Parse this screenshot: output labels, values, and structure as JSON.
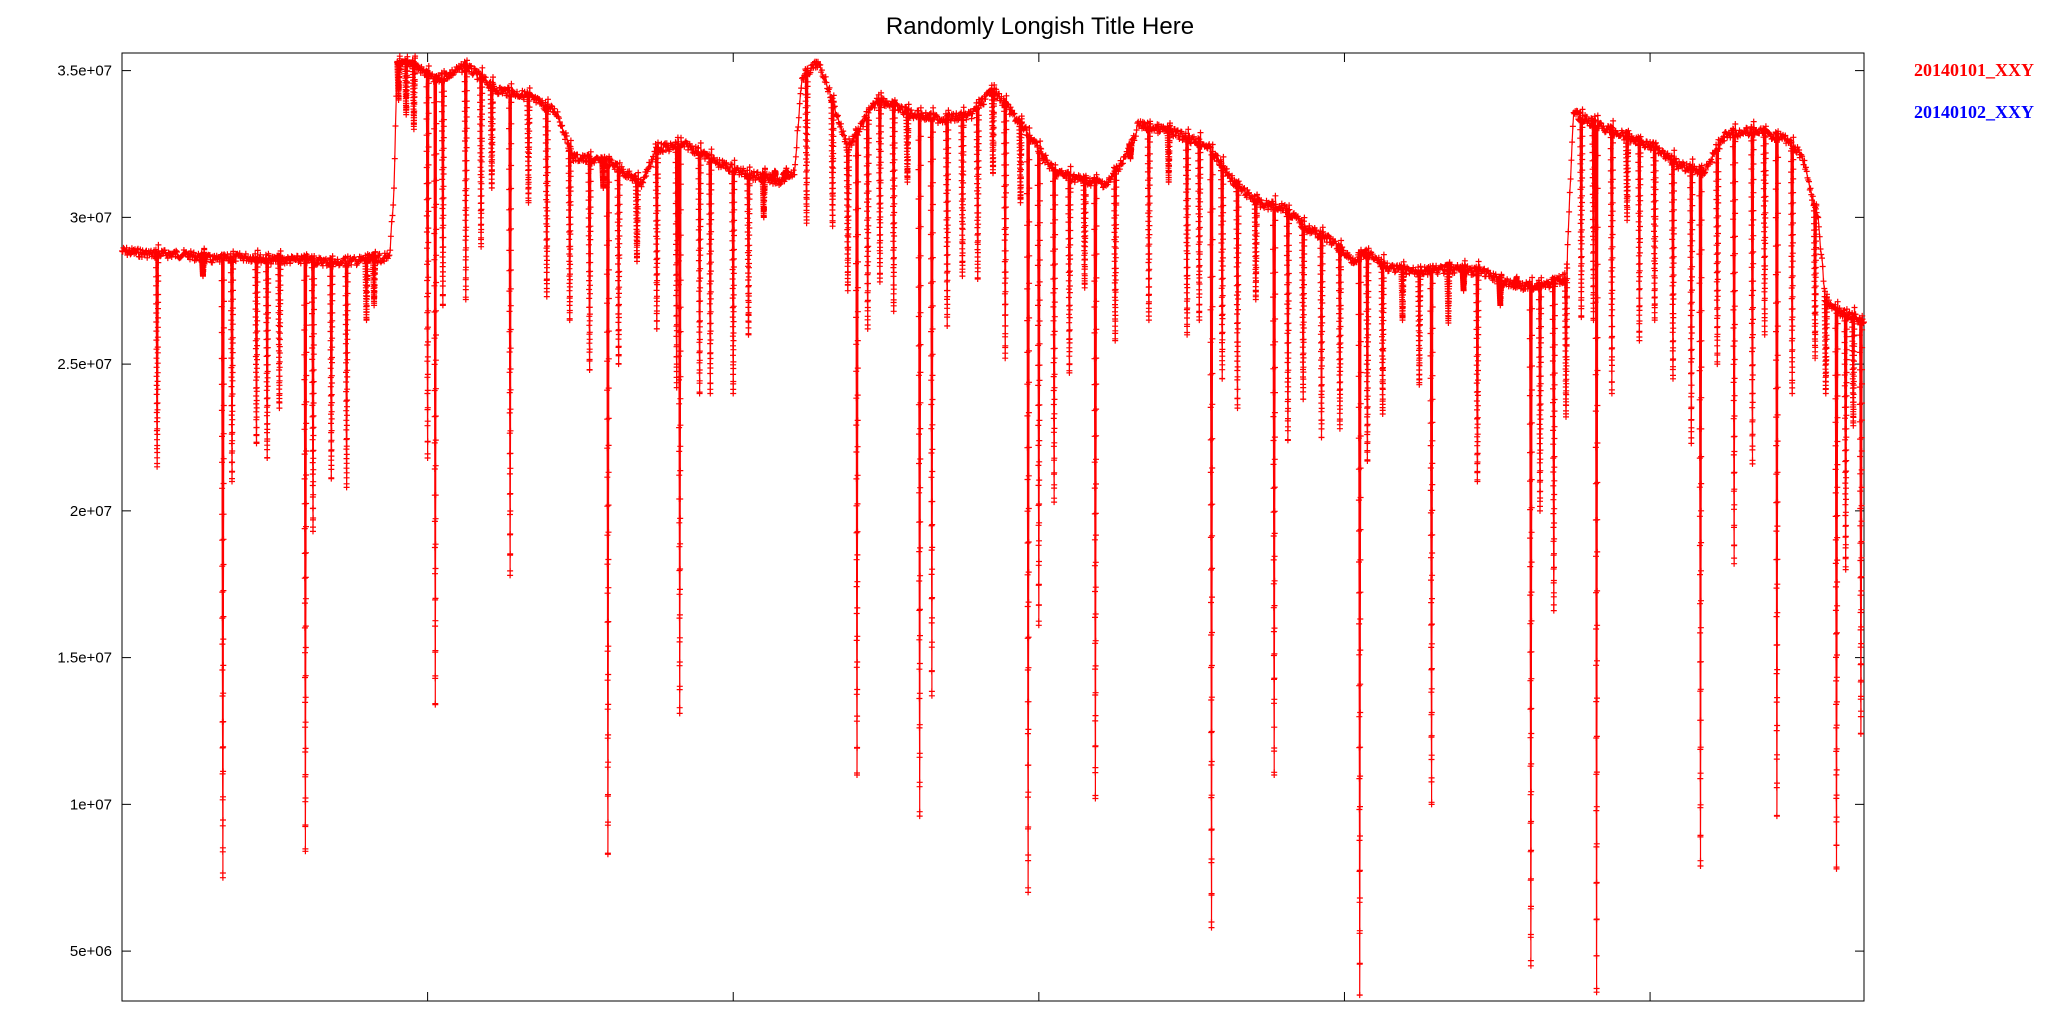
{
  "chart_data": {
    "type": "line",
    "title": "Randomly Longish Title Here",
    "xlabel": "",
    "ylabel": "",
    "ylim": [
      3300000,
      35600000
    ],
    "xlim": [
      0,
      1140
    ],
    "y_ticks": [
      {
        "value": 5000000,
        "label": "5e+06"
      },
      {
        "value": 10000000,
        "label": "1e+07"
      },
      {
        "value": 15000000,
        "label": "1.5e+07"
      },
      {
        "value": 20000000,
        "label": "2e+07"
      },
      {
        "value": 25000000,
        "label": "2.5e+07"
      },
      {
        "value": 30000000,
        "label": "3e+07"
      },
      {
        "value": 35000000,
        "label": "3.5e+07"
      }
    ],
    "x_ticks": [
      200,
      400,
      600,
      800,
      1000
    ],
    "grid": false,
    "legend_position": "outside-right",
    "series": [
      {
        "name": "20140101_XXY",
        "color": "#ff0000",
        "marker": "+",
        "baseline": [
          [
            0,
            29000000
          ],
          [
            20,
            28900000
          ],
          [
            40,
            28900000
          ],
          [
            60,
            28700000
          ],
          [
            80,
            28800000
          ],
          [
            100,
            28700000
          ],
          [
            120,
            28700000
          ],
          [
            140,
            28600000
          ],
          [
            160,
            28700000
          ],
          [
            175,
            28800000
          ],
          [
            178,
            31000000
          ],
          [
            180,
            35300000
          ],
          [
            190,
            35400000
          ],
          [
            205,
            34800000
          ],
          [
            225,
            35300000
          ],
          [
            245,
            34500000
          ],
          [
            265,
            34300000
          ],
          [
            285,
            33700000
          ],
          [
            295,
            32200000
          ],
          [
            320,
            32000000
          ],
          [
            340,
            31300000
          ],
          [
            350,
            32500000
          ],
          [
            370,
            32600000
          ],
          [
            390,
            32000000
          ],
          [
            410,
            31600000
          ],
          [
            430,
            31400000
          ],
          [
            440,
            31700000
          ],
          [
            445,
            34900000
          ],
          [
            455,
            35400000
          ],
          [
            460,
            34900000
          ],
          [
            475,
            32500000
          ],
          [
            495,
            34200000
          ],
          [
            515,
            33700000
          ],
          [
            535,
            33500000
          ],
          [
            555,
            33600000
          ],
          [
            570,
            34500000
          ],
          [
            590,
            33200000
          ],
          [
            610,
            31700000
          ],
          [
            630,
            31400000
          ],
          [
            645,
            31300000
          ],
          [
            660,
            32500000
          ],
          [
            665,
            33300000
          ],
          [
            685,
            33100000
          ],
          [
            710,
            32600000
          ],
          [
            730,
            31200000
          ],
          [
            745,
            30600000
          ],
          [
            760,
            30500000
          ],
          [
            775,
            29800000
          ],
          [
            790,
            29400000
          ],
          [
            805,
            28700000
          ],
          [
            815,
            28900000
          ],
          [
            830,
            28400000
          ],
          [
            850,
            28300000
          ],
          [
            870,
            28400000
          ],
          [
            890,
            28300000
          ],
          [
            905,
            27900000
          ],
          [
            920,
            27800000
          ],
          [
            935,
            27900000
          ],
          [
            945,
            28100000
          ],
          [
            950,
            33700000
          ],
          [
            965,
            33300000
          ],
          [
            985,
            32900000
          ],
          [
            1005,
            32500000
          ],
          [
            1020,
            31900000
          ],
          [
            1035,
            31700000
          ],
          [
            1050,
            33000000
          ],
          [
            1070,
            33100000
          ],
          [
            1090,
            32800000
          ],
          [
            1100,
            32200000
          ],
          [
            1110,
            30000000
          ],
          [
            1115,
            27300000
          ],
          [
            1125,
            26900000
          ],
          [
            1135,
            26700000
          ],
          [
            1140,
            26500000
          ]
        ],
        "dips": [
          [
            23,
            21500000
          ],
          [
            53,
            28000000
          ],
          [
            66,
            7500000
          ],
          [
            72,
            21000000
          ],
          [
            88,
            22300000
          ],
          [
            95,
            21800000
          ],
          [
            103,
            23500000
          ],
          [
            120,
            8400000
          ],
          [
            125,
            19300000
          ],
          [
            137,
            21100000
          ],
          [
            147,
            20800000
          ],
          [
            160,
            26500000
          ],
          [
            165,
            27000000
          ],
          [
            181,
            34000000
          ],
          [
            186,
            33500000
          ],
          [
            191,
            33000000
          ],
          [
            200,
            21800000
          ],
          [
            205,
            13400000
          ],
          [
            210,
            27000000
          ],
          [
            225,
            27200000
          ],
          [
            235,
            29000000
          ],
          [
            242,
            31000000
          ],
          [
            254,
            17800000
          ],
          [
            266,
            30500000
          ],
          [
            278,
            27300000
          ],
          [
            293,
            26500000
          ],
          [
            306,
            24800000
          ],
          [
            315,
            31000000
          ],
          [
            318,
            8300000
          ],
          [
            325,
            25000000
          ],
          [
            337,
            28500000
          ],
          [
            350,
            26200000
          ],
          [
            363,
            24200000
          ],
          [
            365,
            13100000
          ],
          [
            378,
            24000000
          ],
          [
            385,
            24000000
          ],
          [
            400,
            24000000
          ],
          [
            410,
            26000000
          ],
          [
            420,
            30000000
          ],
          [
            427,
            31400000
          ],
          [
            434,
            31300000
          ],
          [
            448,
            29800000
          ],
          [
            465,
            29700000
          ],
          [
            475,
            27500000
          ],
          [
            481,
            11000000
          ],
          [
            488,
            26200000
          ],
          [
            496,
            27800000
          ],
          [
            505,
            26800000
          ],
          [
            514,
            31200000
          ],
          [
            522,
            9600000
          ],
          [
            530,
            13700000
          ],
          [
            540,
            26300000
          ],
          [
            550,
            28000000
          ],
          [
            560,
            27900000
          ],
          [
            570,
            31500000
          ],
          [
            578,
            25200000
          ],
          [
            588,
            30500000
          ],
          [
            593,
            7000000
          ],
          [
            600,
            16100000
          ],
          [
            610,
            20300000
          ],
          [
            620,
            24700000
          ],
          [
            630,
            27600000
          ],
          [
            637,
            10200000
          ],
          [
            650,
            25800000
          ],
          [
            660,
            32000000
          ],
          [
            672,
            26500000
          ],
          [
            685,
            31200000
          ],
          [
            697,
            26000000
          ],
          [
            705,
            26500000
          ],
          [
            713,
            5800000
          ],
          [
            720,
            24500000
          ],
          [
            730,
            23500000
          ],
          [
            742,
            27200000
          ],
          [
            754,
            11000000
          ],
          [
            763,
            22400000
          ],
          [
            773,
            23800000
          ],
          [
            785,
            22500000
          ],
          [
            797,
            22800000
          ],
          [
            810,
            3500000
          ],
          [
            815,
            21700000
          ],
          [
            825,
            23300000
          ],
          [
            838,
            26500000
          ],
          [
            849,
            24300000
          ],
          [
            857,
            10000000
          ],
          [
            868,
            26400000
          ],
          [
            878,
            27500000
          ],
          [
            887,
            21000000
          ],
          [
            902,
            27000000
          ],
          [
            912,
            27600000
          ],
          [
            922,
            4500000
          ],
          [
            928,
            20000000
          ],
          [
            937,
            16600000
          ],
          [
            945,
            23200000
          ],
          [
            955,
            26600000
          ],
          [
            963,
            26500000
          ],
          [
            965,
            3600000
          ],
          [
            975,
            24000000
          ],
          [
            985,
            29900000
          ],
          [
            993,
            25800000
          ],
          [
            1003,
            26500000
          ],
          [
            1015,
            24500000
          ],
          [
            1027,
            22300000
          ],
          [
            1033,
            7900000
          ],
          [
            1044,
            25000000
          ],
          [
            1055,
            18200000
          ],
          [
            1067,
            21600000
          ],
          [
            1075,
            26000000
          ],
          [
            1083,
            9600000
          ],
          [
            1093,
            24000000
          ],
          [
            1108,
            25200000
          ],
          [
            1115,
            24000000
          ],
          [
            1122,
            7800000
          ],
          [
            1128,
            18000000
          ],
          [
            1133,
            22900000
          ],
          [
            1138,
            12400000
          ]
        ]
      },
      {
        "name": "20140102_XXY",
        "color": "#0000ff",
        "points": []
      }
    ]
  }
}
